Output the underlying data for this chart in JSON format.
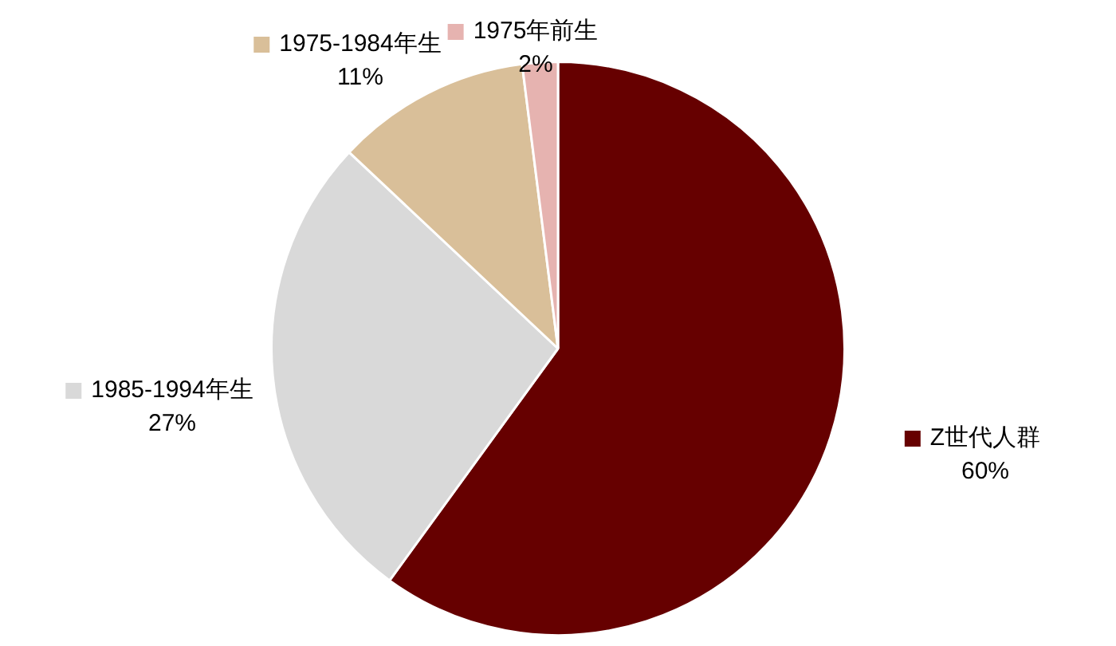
{
  "chart_data": {
    "type": "pie",
    "categories": [
      "Z世代人群",
      "1985-1994年生",
      "1975-1984年生",
      "1975年前生"
    ],
    "values": [
      60,
      27,
      11,
      2
    ],
    "value_labels": [
      "60%",
      "27%",
      "11%",
      "2%"
    ],
    "colors": [
      "#660000",
      "#d9d9d9",
      "#d9bf99",
      "#e6b3b0"
    ],
    "legend": "top"
  }
}
